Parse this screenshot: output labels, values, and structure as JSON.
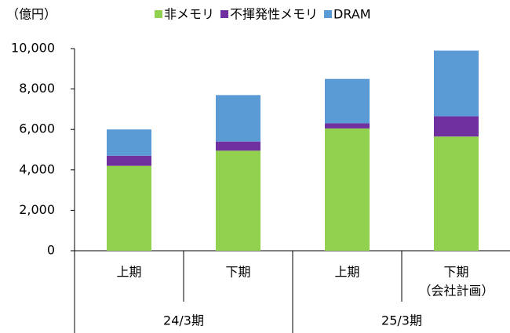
{
  "chart_data": {
    "type": "stacked_bar",
    "unit_label": "（億円）",
    "categories": [
      "上期",
      "下期",
      "上期",
      "下期"
    ],
    "category_notes": [
      null,
      null,
      null,
      "（会社計画）"
    ],
    "groups": [
      "24/3期",
      "25/3期"
    ],
    "series": [
      {
        "name": "非メモリ",
        "color": "#92d050",
        "values": [
          4200,
          4950,
          6050,
          5650
        ]
      },
      {
        "name": "不揮発性メモリ",
        "color": "#7030a0",
        "values": [
          500,
          450,
          250,
          1000
        ]
      },
      {
        "name": "DRAM",
        "color": "#5b9bd5",
        "values": [
          1300,
          2300,
          2200,
          3250
        ]
      }
    ],
    "ylim": [
      0,
      10000
    ],
    "yticks": [
      0,
      {
        "value": 2000,
        "label": "2,000"
      },
      {
        "value": 4000,
        "label": "4,000"
      },
      {
        "value": 6000,
        "label": "6,000"
      },
      {
        "value": 8000,
        "label": "8,000"
      },
      {
        "value": 10000,
        "label": "10,000"
      }
    ],
    "legend": "top",
    "grid": false
  }
}
